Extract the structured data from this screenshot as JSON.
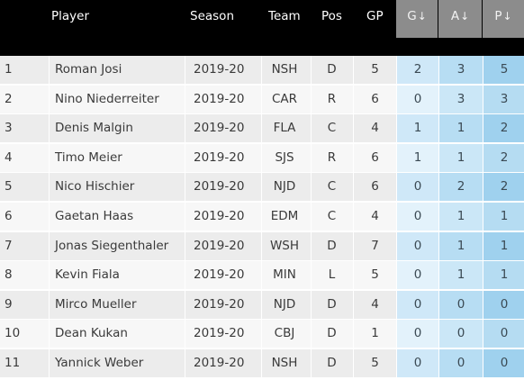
{
  "columns": {
    "player": "Player",
    "season": "Season",
    "team": "Team",
    "pos": "Pos",
    "gp": "GP",
    "g": "G",
    "a": "A",
    "p": "P",
    "sort_arrow": "↓"
  },
  "rows": [
    {
      "rank": "1",
      "player": "Roman Josi",
      "season": "2019-20",
      "team": "NSH",
      "pos": "D",
      "gp": "5",
      "g": "2",
      "a": "3",
      "p": "5"
    },
    {
      "rank": "2",
      "player": "Nino Niederreiter",
      "season": "2019-20",
      "team": "CAR",
      "pos": "R",
      "gp": "6",
      "g": "0",
      "a": "3",
      "p": "3"
    },
    {
      "rank": "3",
      "player": "Denis Malgin",
      "season": "2019-20",
      "team": "FLA",
      "pos": "C",
      "gp": "4",
      "g": "1",
      "a": "1",
      "p": "2"
    },
    {
      "rank": "4",
      "player": "Timo Meier",
      "season": "2019-20",
      "team": "SJS",
      "pos": "R",
      "gp": "6",
      "g": "1",
      "a": "1",
      "p": "2"
    },
    {
      "rank": "5",
      "player": "Nico Hischier",
      "season": "2019-20",
      "team": "NJD",
      "pos": "C",
      "gp": "6",
      "g": "0",
      "a": "2",
      "p": "2"
    },
    {
      "rank": "6",
      "player": "Gaetan Haas",
      "season": "2019-20",
      "team": "EDM",
      "pos": "C",
      "gp": "4",
      "g": "0",
      "a": "1",
      "p": "1"
    },
    {
      "rank": "7",
      "player": "Jonas Siegenthaler",
      "season": "2019-20",
      "team": "WSH",
      "pos": "D",
      "gp": "7",
      "g": "0",
      "a": "1",
      "p": "1"
    },
    {
      "rank": "8",
      "player": "Kevin Fiala",
      "season": "2019-20",
      "team": "MIN",
      "pos": "L",
      "gp": "5",
      "g": "0",
      "a": "1",
      "p": "1"
    },
    {
      "rank": "9",
      "player": "Mirco Mueller",
      "season": "2019-20",
      "team": "NJD",
      "pos": "D",
      "gp": "4",
      "g": "0",
      "a": "0",
      "p": "0"
    },
    {
      "rank": "10",
      "player": "Dean Kukan",
      "season": "2019-20",
      "team": "CBJ",
      "pos": "D",
      "gp": "1",
      "g": "0",
      "a": "0",
      "p": "0"
    },
    {
      "rank": "11",
      "player": "Yannick Weber",
      "season": "2019-20",
      "team": "NSH",
      "pos": "D",
      "gp": "5",
      "g": "0",
      "a": "0",
      "p": "0"
    }
  ]
}
